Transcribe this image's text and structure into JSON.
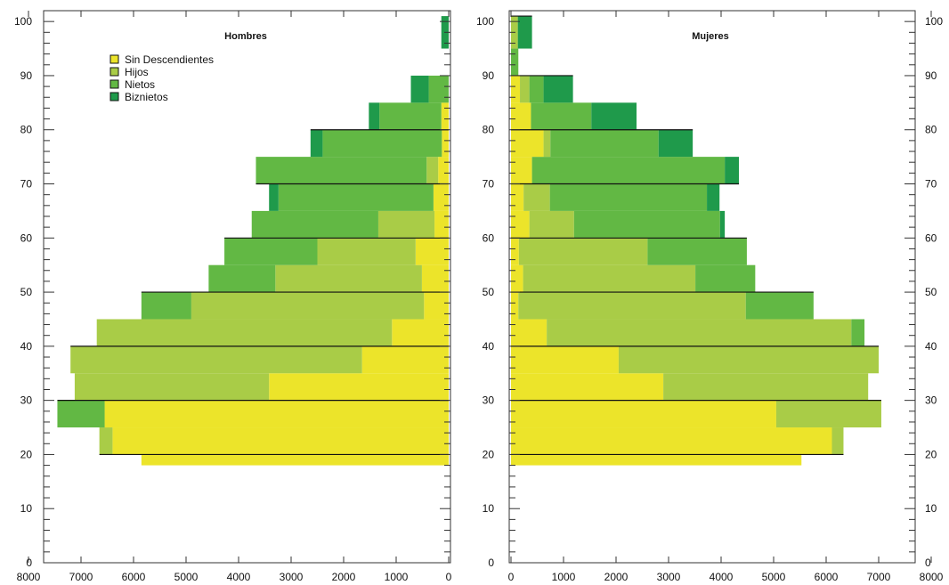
{
  "chart_data": {
    "type": "bar",
    "subtype": "population-pyramid-stacked",
    "orientation": "horizontal",
    "colors": {
      "Sin Descendientes": "#ece42a",
      "Hijos": "#a9cc47",
      "Nietos": "#62b844",
      "Biznietos": "#1f9a4b"
    },
    "legend": {
      "placement": "top-left",
      "entries": [
        "Sin Descendientes",
        "Hijos",
        "Nietos",
        "Biznietos"
      ]
    },
    "y_axis": {
      "range": [
        0,
        102
      ],
      "ticks": [
        0,
        10,
        20,
        30,
        40,
        50,
        60,
        70,
        80,
        90,
        100
      ],
      "tick_labels": [
        "0",
        "10",
        "20",
        "30",
        "40",
        "50",
        "60",
        "70",
        "80",
        "90",
        "100"
      ]
    },
    "x_axis": {
      "range": [
        0,
        8000
      ],
      "ticks": [
        0,
        1000,
        2000,
        3000,
        4000,
        5000,
        6000,
        7000,
        8000
      ],
      "tick_labels": [
        "0",
        "1000",
        "2000",
        "3000",
        "4000",
        "5000",
        "6000",
        "7000",
        "8000"
      ]
    },
    "panels": [
      {
        "title": "Hombres",
        "side": "left",
        "bands": [
          {
            "from": 18,
            "to": 20,
            "values": [
              5850,
              0,
              0,
              0
            ]
          },
          {
            "from": 20,
            "to": 25,
            "values": [
              6400,
              250,
              0,
              0
            ]
          },
          {
            "from": 25,
            "to": 30,
            "values": [
              6550,
              0,
              900,
              0
            ]
          },
          {
            "from": 30,
            "to": 35,
            "values": [
              3420,
              3700,
              0,
              0
            ]
          },
          {
            "from": 35,
            "to": 40,
            "values": [
              1650,
              5550,
              0,
              0
            ]
          },
          {
            "from": 40,
            "to": 45,
            "values": [
              1080,
              5620,
              0,
              0
            ]
          },
          {
            "from": 45,
            "to": 50,
            "values": [
              470,
              4430,
              950,
              0
            ]
          },
          {
            "from": 50,
            "to": 55,
            "values": [
              510,
              2790,
              1270,
              0
            ]
          },
          {
            "from": 55,
            "to": 60,
            "values": [
              630,
              1870,
              1770,
              0
            ]
          },
          {
            "from": 60,
            "to": 65,
            "values": [
              270,
              1070,
              2410,
              0
            ]
          },
          {
            "from": 65,
            "to": 70,
            "values": [
              290,
              0,
              2950,
              180
            ]
          },
          {
            "from": 70,
            "to": 75,
            "values": [
              200,
              220,
              3250,
              0
            ]
          },
          {
            "from": 75,
            "to": 80,
            "values": [
              130,
              0,
              2270,
              230
            ]
          },
          {
            "from": 80,
            "to": 85,
            "values": [
              140,
              0,
              1180,
              200
            ]
          },
          {
            "from": 85,
            "to": 90,
            "values": [
              0,
              0,
              380,
              340
            ]
          },
          {
            "from": 95,
            "to": 101,
            "values": [
              0,
              0,
              0,
              140
            ]
          }
        ],
        "outline_at": [
          20,
          30,
          40,
          50,
          60,
          70,
          80
        ]
      },
      {
        "title": "Mujeres",
        "side": "right",
        "bands": [
          {
            "from": 18,
            "to": 20,
            "values": [
              5530,
              0,
              0,
              0
            ]
          },
          {
            "from": 20,
            "to": 25,
            "values": [
              6110,
              220,
              0,
              0
            ]
          },
          {
            "from": 25,
            "to": 30,
            "values": [
              5050,
              2000,
              0,
              0
            ]
          },
          {
            "from": 30,
            "to": 35,
            "values": [
              2900,
              3900,
              0,
              0
            ]
          },
          {
            "from": 35,
            "to": 40,
            "values": [
              2050,
              4950,
              0,
              0
            ]
          },
          {
            "from": 40,
            "to": 45,
            "values": [
              680,
              5800,
              250,
              0
            ]
          },
          {
            "from": 45,
            "to": 50,
            "values": [
              140,
              4330,
              1290,
              0
            ]
          },
          {
            "from": 50,
            "to": 55,
            "values": [
              230,
              3280,
              1140,
              0
            ]
          },
          {
            "from": 55,
            "to": 60,
            "values": [
              150,
              2450,
              1890,
              0
            ]
          },
          {
            "from": 60,
            "to": 65,
            "values": [
              350,
              850,
              2780,
              90
            ]
          },
          {
            "from": 65,
            "to": 70,
            "values": [
              240,
              500,
              2990,
              240
            ]
          },
          {
            "from": 70,
            "to": 75,
            "values": [
              400,
              0,
              3670,
              270
            ]
          },
          {
            "from": 75,
            "to": 80,
            "values": [
              620,
              130,
              2060,
              650
            ]
          },
          {
            "from": 80,
            "to": 85,
            "values": [
              380,
              0,
              1150,
              860
            ]
          },
          {
            "from": 85,
            "to": 90,
            "values": [
              170,
              180,
              270,
              560
            ]
          },
          {
            "from": 90,
            "to": 95,
            "values": [
              0,
              0,
              140,
              0
            ]
          },
          {
            "from": 95,
            "to": 101,
            "values": [
              0,
              130,
              0,
              270
            ]
          }
        ],
        "outline_at": [
          20,
          30,
          40,
          50,
          60,
          70,
          80,
          90,
          101
        ]
      }
    ]
  }
}
